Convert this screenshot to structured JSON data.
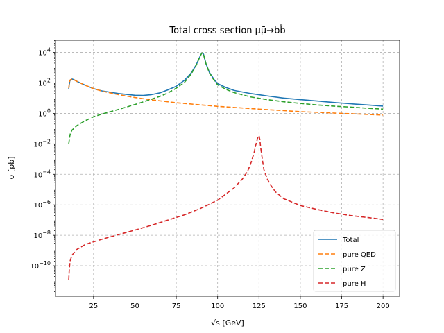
{
  "chart_data": {
    "type": "line",
    "title": "Total cross section μμ̄→bb̄",
    "xlabel": "√s [GeV]",
    "ylabel": "σ [pb]",
    "xlim": [
      2,
      210
    ],
    "ylim_log10": [
      -12,
      4.8
    ],
    "yscale": "log",
    "grid": true,
    "legend_position": "lower-right",
    "x_ticks": [
      25,
      50,
      75,
      100,
      125,
      150,
      175,
      200
    ],
    "x_tick_labels": [
      "25",
      "50",
      "75",
      "100",
      "125",
      "150",
      "175",
      "200"
    ],
    "y_ticks_log10": [
      -10,
      -8,
      -6,
      -4,
      -2,
      0,
      2,
      4
    ],
    "y_tick_labels": [
      {
        "base": "10",
        "exp": "−10"
      },
      {
        "base": "10",
        "exp": "−8"
      },
      {
        "base": "10",
        "exp": "−6"
      },
      {
        "base": "10",
        "exp": "−4"
      },
      {
        "base": "10",
        "exp": "−2"
      },
      {
        "base": "10",
        "exp": "0"
      },
      {
        "base": "10",
        "exp": "2"
      },
      {
        "base": "10",
        "exp": "4"
      }
    ],
    "series": [
      {
        "name": "Total",
        "color": "#1f77b4",
        "dash": "solid",
        "x": [
          10,
          10.6,
          11,
          12,
          13,
          15,
          20,
          25,
          30,
          40,
          50,
          55,
          60,
          65,
          70,
          75,
          80,
          84,
          87,
          89,
          90,
          90.5,
          91,
          91.5,
          92,
          93,
          95,
          98,
          100,
          105,
          110,
          120,
          130,
          140,
          150,
          160,
          170,
          180,
          190,
          200
        ],
        "y": [
          40,
          130,
          150,
          180,
          165,
          125,
          70,
          42,
          30,
          20,
          15.5,
          15,
          17,
          22,
          35,
          60,
          150,
          450,
          1500,
          4500,
          7500,
          9000,
          9500,
          7500,
          4500,
          1800,
          500,
          160,
          90,
          50,
          32,
          20,
          14,
          10,
          8,
          6.5,
          5.2,
          4.3,
          3.6,
          3.0
        ]
      },
      {
        "name": "pure QED",
        "color": "#ff7f0e",
        "dash": "dashed",
        "x": [
          10,
          10.6,
          11,
          12,
          13,
          15,
          20,
          25,
          30,
          40,
          50,
          60,
          75,
          90,
          100,
          125,
          150,
          175,
          200
        ],
        "y": [
          45,
          140,
          160,
          180,
          165,
          125,
          70,
          42,
          29,
          17,
          11,
          7.7,
          5.0,
          3.6,
          2.9,
          1.9,
          1.3,
          1.0,
          0.78
        ]
      },
      {
        "name": "pure Z",
        "color": "#2ca02c",
        "dash": "dashed",
        "x": [
          10,
          10.6,
          11,
          12,
          13,
          15,
          20,
          25,
          30,
          40,
          50,
          60,
          65,
          70,
          75,
          80,
          84,
          87,
          89,
          90,
          90.5,
          91,
          91.5,
          92,
          93,
          95,
          98,
          100,
          105,
          110,
          120,
          130,
          140,
          150,
          160,
          170,
          180,
          190,
          200
        ],
        "y": [
          0.01,
          0.03,
          0.05,
          0.08,
          0.1,
          0.16,
          0.33,
          0.6,
          0.9,
          1.8,
          3.8,
          8.5,
          13,
          22,
          45,
          110,
          380,
          1400,
          4400,
          7400,
          8900,
          9400,
          7400,
          4400,
          1750,
          470,
          140,
          75,
          38,
          23,
          12,
          8.0,
          5.8,
          4.5,
          3.6,
          3.0,
          2.6,
          2.2,
          1.9
        ]
      },
      {
        "name": "pure H",
        "color": "#d62728",
        "dash": "dashed",
        "x": [
          10,
          10.3,
          10.8,
          12,
          15,
          20,
          30,
          40,
          50,
          60,
          70,
          80,
          90,
          100,
          110,
          115,
          118,
          120,
          122,
          123,
          124,
          124.5,
          125,
          125.5,
          126,
          127,
          128,
          130,
          132,
          135,
          140,
          150,
          160,
          170,
          180,
          190,
          200
        ],
        "y": [
          1.2e-11,
          5e-11,
          2e-10,
          5e-10,
          1.2e-09,
          2.5e-09,
          5.5e-09,
          1.1e-08,
          2.2e-08,
          4.5e-08,
          1e-07,
          2.2e-07,
          6e-07,
          2e-06,
          1.3e-05,
          5e-05,
          0.00015,
          0.0005,
          0.0025,
          0.008,
          0.02,
          0.03,
          0.035,
          0.02,
          0.006,
          0.001,
          0.0002,
          5e-05,
          2e-05,
          7e-06,
          2.5e-06,
          9e-07,
          5e-07,
          3e-07,
          2e-07,
          1.5e-07,
          1.1e-07
        ]
      }
    ]
  }
}
